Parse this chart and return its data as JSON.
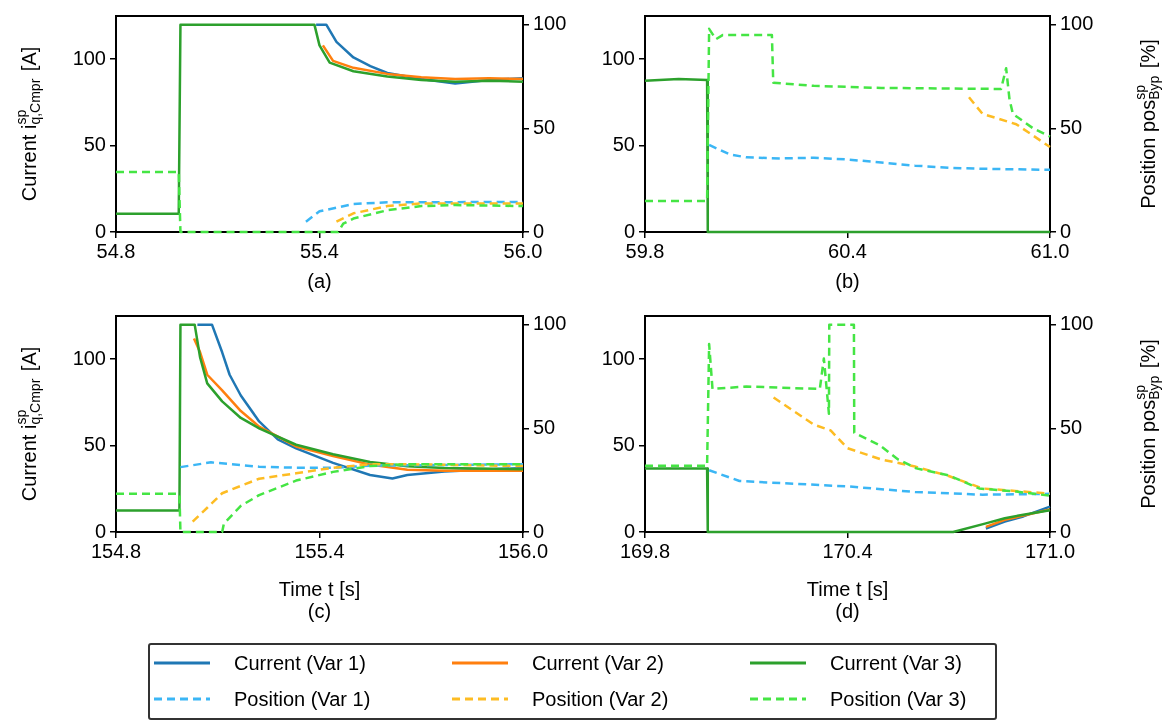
{
  "chart_data": [
    {
      "type": "line",
      "title": "(a)",
      "ylabel": "Current i$^{sp}$$_{q,Cmpr}$ [A]",
      "xlim": [
        54.8,
        56.0
      ],
      "xticks": [
        54.8,
        55.4,
        {
          "value": 56,
          "label": "56.0"
        }
      ],
      "ylim": [
        0,
        125
      ],
      "yticks": [
        0,
        50,
        100
      ],
      "y2lim": [
        0,
        104.2
      ],
      "y2ticks": [
        0,
        50,
        100
      ],
      "legend": "bottom",
      "series": [
        {
          "name": "Current (Var 1)",
          "color": "#1f77b4",
          "line_style": "solid",
          "x": [
            55.39,
            55.42,
            55.45,
            55.5,
            55.55,
            55.6,
            55.7,
            55.8,
            55.9,
            56.0
          ],
          "values": [
            120,
            120,
            110,
            101,
            96,
            92,
            88.5,
            86,
            88,
            89
          ]
        },
        {
          "name": "Current (Var 2)",
          "color": "#ff7f0e",
          "line_style": "solid",
          "x": [
            55.41,
            55.44,
            55.5,
            55.6,
            55.7,
            55.8,
            55.9,
            56.0
          ],
          "values": [
            108,
            99,
            95,
            91.5,
            89.5,
            88.5,
            89,
            88.5
          ]
        },
        {
          "name": "Current (Var 3)",
          "color": "#2ca02c",
          "line_style": "solid",
          "x": [
            54.8,
            54.985,
            54.99,
            55.385,
            55.4,
            55.43,
            55.5,
            55.6,
            55.7,
            55.8,
            55.9,
            56.0
          ],
          "values": [
            10.5,
            10.5,
            120,
            120,
            108,
            98,
            93,
            90,
            88,
            87,
            87.5,
            87
          ]
        },
        {
          "name": "Position (Var 1)",
          "color": "#3bb6f5",
          "line_style": "dashed",
          "axis": "y2",
          "x": [
            55.36,
            55.4,
            55.5,
            55.6,
            56.0
          ],
          "values": [
            5,
            10,
            13.5,
            14.3,
            14.5
          ]
        },
        {
          "name": "Position (Var 2)",
          "color": "#fdbc23",
          "line_style": "dashed",
          "axis": "y2",
          "x": [
            55.45,
            55.5,
            55.6,
            55.7,
            56.0
          ],
          "values": [
            5,
            9,
            12.5,
            13.8,
            13.8
          ]
        },
        {
          "name": "Position (Var 3)",
          "color": "#45e544",
          "line_style": "dashed",
          "axis": "y2",
          "x": [
            54.8,
            54.985,
            54.99,
            55.455,
            55.47,
            55.5,
            55.6,
            55.7,
            55.8,
            56.0
          ],
          "values": [
            29,
            29,
            0,
            0,
            4,
            6.5,
            10.5,
            12.5,
            13,
            12.5
          ]
        }
      ]
    },
    {
      "type": "line",
      "title": "(b)",
      "y2label": "Position pos$^{sp}$$_{Byp}$ [%]",
      "xlim": [
        59.8,
        61.0
      ],
      "xticks": [
        59.8,
        60.4,
        {
          "value": 61,
          "label": "61.0"
        }
      ],
      "ylim": [
        0,
        125
      ],
      "yticks": [
        0,
        50,
        100
      ],
      "y2lim": [
        0,
        104.2
      ],
      "y2ticks": [
        0,
        50,
        100
      ],
      "series": [
        {
          "color": "#2ca02c",
          "line_style": "solid",
          "x": [
            59.8,
            59.9,
            59.984,
            59.986,
            61.0
          ],
          "values": [
            87.5,
            88.5,
            88,
            0,
            0
          ]
        },
        {
          "color": "#3bb6f5",
          "line_style": "dashed",
          "axis": "y2",
          "x": [
            59.99,
            60.05,
            60.1,
            60.2,
            60.3,
            60.4,
            60.5,
            60.6,
            60.7,
            60.8,
            61.0
          ],
          "values": [
            42,
            37.5,
            36,
            35.5,
            35.8,
            35,
            33.5,
            32,
            31,
            30.5,
            30
          ]
        },
        {
          "color": "#fdbc23",
          "line_style": "dashed",
          "axis": "y2",
          "x": [
            60.76,
            60.8,
            60.9,
            61.0
          ],
          "values": [
            65,
            57,
            52,
            41
          ]
        },
        {
          "color": "#45e544",
          "line_style": "dashed",
          "axis": "y2",
          "x": [
            59.8,
            59.984,
            59.99,
            60.01,
            60.03,
            60.176,
            60.18,
            60.3,
            60.5,
            60.855,
            60.87,
            60.88,
            60.89,
            60.95,
            61.0
          ],
          "values": [
            15,
            15,
            98,
            93,
            95,
            95,
            72,
            70.5,
            69.5,
            69,
            79,
            64,
            57,
            50,
            46
          ]
        }
      ]
    },
    {
      "type": "line",
      "title": "(c)",
      "xlabel": "Time t [s]",
      "ylabel": "Current i$^{sp}$$_{q,Cmpr}$ [A]",
      "xlim": [
        154.8,
        156.0
      ],
      "xticks": [
        154.8,
        155.4,
        {
          "value": 156,
          "label": "156.0"
        }
      ],
      "ylim": [
        0,
        125
      ],
      "yticks": [
        0,
        50,
        100
      ],
      "y2lim": [
        0,
        104.2
      ],
      "y2ticks": [
        0,
        50,
        100
      ],
      "series": [
        {
          "color": "#1f77b4",
          "line_style": "solid",
          "x": [
            155.04,
            155.083,
            155.113,
            155.135,
            155.168,
            155.222,
            155.277,
            155.331,
            155.44,
            155.549,
            155.615,
            155.659,
            155.768,
            155.877,
            156.0
          ],
          "values": [
            120,
            120,
            104,
            91,
            79,
            64,
            53.6,
            48.4,
            40,
            33,
            31,
            33,
            35,
            36,
            37
          ]
        },
        {
          "color": "#ff7f0e",
          "line_style": "solid",
          "x": [
            155.03,
            155.048,
            155.069,
            155.113,
            155.168,
            155.222,
            155.331,
            155.44,
            155.549,
            155.659,
            155.768,
            156.0
          ],
          "values": [
            112,
            104,
            91,
            82,
            70,
            61,
            49.5,
            44,
            39,
            36,
            35.5,
            35.5
          ]
        },
        {
          "color": "#2ca02c",
          "line_style": "solid",
          "x": [
            154.8,
            154.987,
            154.99,
            155.032,
            155.048,
            155.069,
            155.113,
            155.168,
            155.222,
            155.331,
            155.44,
            155.549,
            155.659,
            155.768,
            156.0
          ],
          "values": [
            12.5,
            12.5,
            120,
            120,
            101,
            86,
            75.6,
            66,
            60,
            50.5,
            45,
            40.5,
            38,
            37,
            36.3
          ]
        },
        {
          "color": "#3bb6f5",
          "line_style": "dashed",
          "axis": "y2",
          "x": [
            154.99,
            155.08,
            155.222,
            155.331,
            155.44,
            155.549,
            156.0
          ],
          "values": [
            31.3,
            33.6,
            31.5,
            31,
            31,
            32,
            32.7
          ]
        },
        {
          "color": "#fdbc23",
          "line_style": "dashed",
          "axis": "y2",
          "x": [
            155.026,
            155.069,
            155.113,
            155.222,
            155.331,
            155.44,
            155.549,
            155.659,
            156.0
          ],
          "values": [
            5,
            11.7,
            18.7,
            25.7,
            28.3,
            31,
            32.7,
            32.7,
            31.8
          ]
        },
        {
          "color": "#45e544",
          "line_style": "dashed",
          "axis": "y2",
          "x": [
            154.8,
            154.987,
            154.99,
            155.113,
            155.118,
            155.168,
            155.222,
            155.331,
            155.44,
            155.549,
            155.659,
            156.0
          ],
          "values": [
            18.4,
            18.4,
            0,
            0,
            4,
            12.6,
            17.8,
            24.8,
            29,
            31.8,
            32.7,
            32.7
          ]
        }
      ]
    },
    {
      "type": "line",
      "title": "(d)",
      "xlabel": "Time t [s]",
      "y2label": "Position pos$^{sp}$$_{Byp}$ [%]",
      "xlim": [
        169.8,
        171.0
      ],
      "xticks": [
        169.8,
        170.4,
        {
          "value": 171,
          "label": "171.0"
        }
      ],
      "ylim": [
        0,
        125
      ],
      "yticks": [
        0,
        50,
        100
      ],
      "y2lim": [
        0,
        104.2
      ],
      "y2ticks": [
        0,
        50,
        100
      ],
      "series": [
        {
          "color": "#1f77b4",
          "line_style": "solid",
          "x": [
            170.81,
            170.866,
            170.921,
            171.0
          ],
          "values": [
            2,
            6,
            9,
            14.7
          ]
        },
        {
          "color": "#ff7f0e",
          "line_style": "solid",
          "x": [
            170.81,
            170.866,
            171.0
          ],
          "values": [
            3,
            7,
            13
          ]
        },
        {
          "color": "#2ca02c",
          "line_style": "solid",
          "x": [
            169.8,
            169.984,
            169.986,
            170.713,
            170.81,
            170.866,
            170.921,
            171.0
          ],
          "values": [
            36.7,
            36.7,
            0,
            0,
            5,
            8,
            10,
            12.6
          ]
        },
        {
          "color": "#3bb6f5",
          "line_style": "dashed",
          "axis": "y2",
          "x": [
            169.99,
            170.08,
            170.4,
            170.6,
            170.8,
            171.0
          ],
          "values": [
            29.8,
            24.6,
            22,
            19.3,
            18,
            18.4
          ]
        },
        {
          "color": "#fdbc23",
          "line_style": "dashed",
          "axis": "y2",
          "x": [
            170.181,
            170.3,
            170.35,
            170.4,
            170.5,
            170.6,
            170.7,
            170.8,
            171.0
          ],
          "values": [
            64.9,
            51.8,
            49,
            40.4,
            35,
            31.6,
            27,
            21,
            18.5
          ]
        },
        {
          "color": "#45e544",
          "line_style": "dashed",
          "axis": "y2",
          "x": [
            169.8,
            169.984,
            169.99,
            170.0,
            170.1,
            170.318,
            170.33,
            170.345,
            170.346,
            170.419,
            170.42,
            170.494,
            170.55,
            170.604,
            170.702,
            170.79,
            170.9,
            171.0
          ],
          "values": [
            31.9,
            31.9,
            90.7,
            69,
            70.2,
            69,
            83.7,
            57,
            100,
            100,
            47.9,
            42,
            35,
            30.7,
            27.2,
            21,
            19.5,
            17.5
          ]
        }
      ]
    }
  ]
}
